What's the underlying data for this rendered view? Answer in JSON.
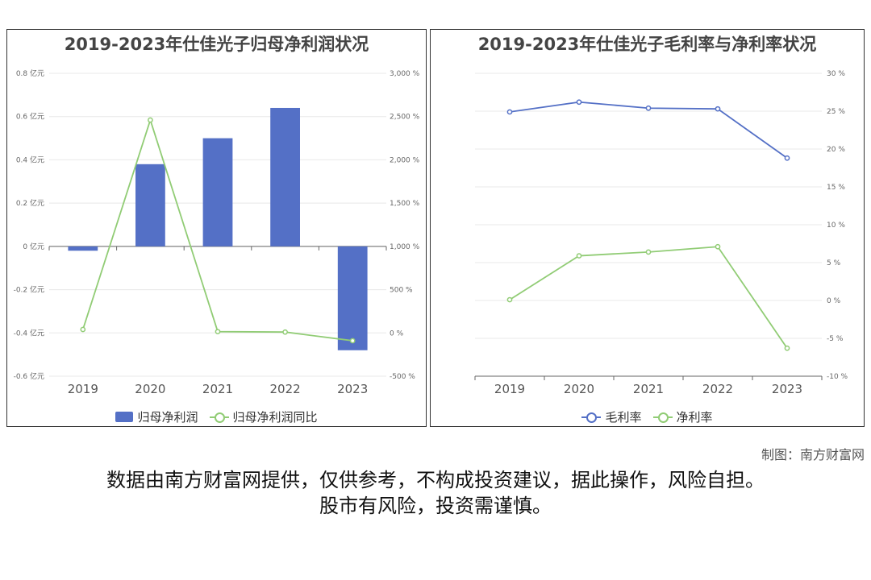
{
  "chart_data": [
    {
      "type": "bar",
      "title": "2019-2023年仕佳光子归母净利润状况",
      "categories": [
        "2019",
        "2020",
        "2021",
        "2022",
        "2023"
      ],
      "y_axis_left": {
        "ticks": [
          "-0.6 亿元",
          "-0.4 亿元",
          "-0.2 亿元",
          "0 亿元",
          "0.2 亿元",
          "0.4 亿元",
          "0.6 亿元",
          "0.8 亿元"
        ],
        "range": [
          -0.6,
          0.8
        ]
      },
      "y_axis_right": {
        "ticks": [
          "-500 %",
          "0 %",
          "500 %",
          "1,000 %",
          "1,500 %",
          "2,000 %",
          "2,500 %",
          "3,000 %"
        ],
        "range": [
          -500,
          3000
        ]
      },
      "series": [
        {
          "name": "归母净利润",
          "type": "bar",
          "axis": "left",
          "color": "#5470c6",
          "values": [
            -0.02,
            0.38,
            0.5,
            0.64,
            -0.48
          ]
        },
        {
          "name": "归母净利润同比",
          "type": "line",
          "axis": "right",
          "color": "#91cc75",
          "values": [
            40,
            2460,
            15,
            10,
            -90
          ]
        }
      ],
      "legend_position": "bottom",
      "grid": true
    },
    {
      "type": "line",
      "title": "2019-2023年仕佳光子毛利率与净利率状况",
      "categories": [
        "2019",
        "2020",
        "2021",
        "2022",
        "2023"
      ],
      "y_axis_right": {
        "ticks": [
          "-10 %",
          "-5 %",
          "0 %",
          "5 %",
          "10 %",
          "15 %",
          "20 %",
          "25 %",
          "30 %"
        ],
        "range": [
          -10,
          30
        ]
      },
      "series": [
        {
          "name": "毛利率",
          "color": "#5470c6",
          "values": [
            24.9,
            26.2,
            25.4,
            25.3,
            18.8
          ]
        },
        {
          "name": "净利率",
          "color": "#91cc75",
          "values": [
            0.1,
            5.9,
            6.4,
            7.1,
            -6.3
          ]
        }
      ],
      "legend_position": "bottom",
      "grid": true
    }
  ],
  "footer": {
    "credit": "制图：南方财富网",
    "disclaimer_line1": "数据由南方财富网提供，仅供参考，不构成投资建议，据此操作，风险自担。",
    "disclaimer_line2": "股市有风险，投资需谨慎。"
  }
}
